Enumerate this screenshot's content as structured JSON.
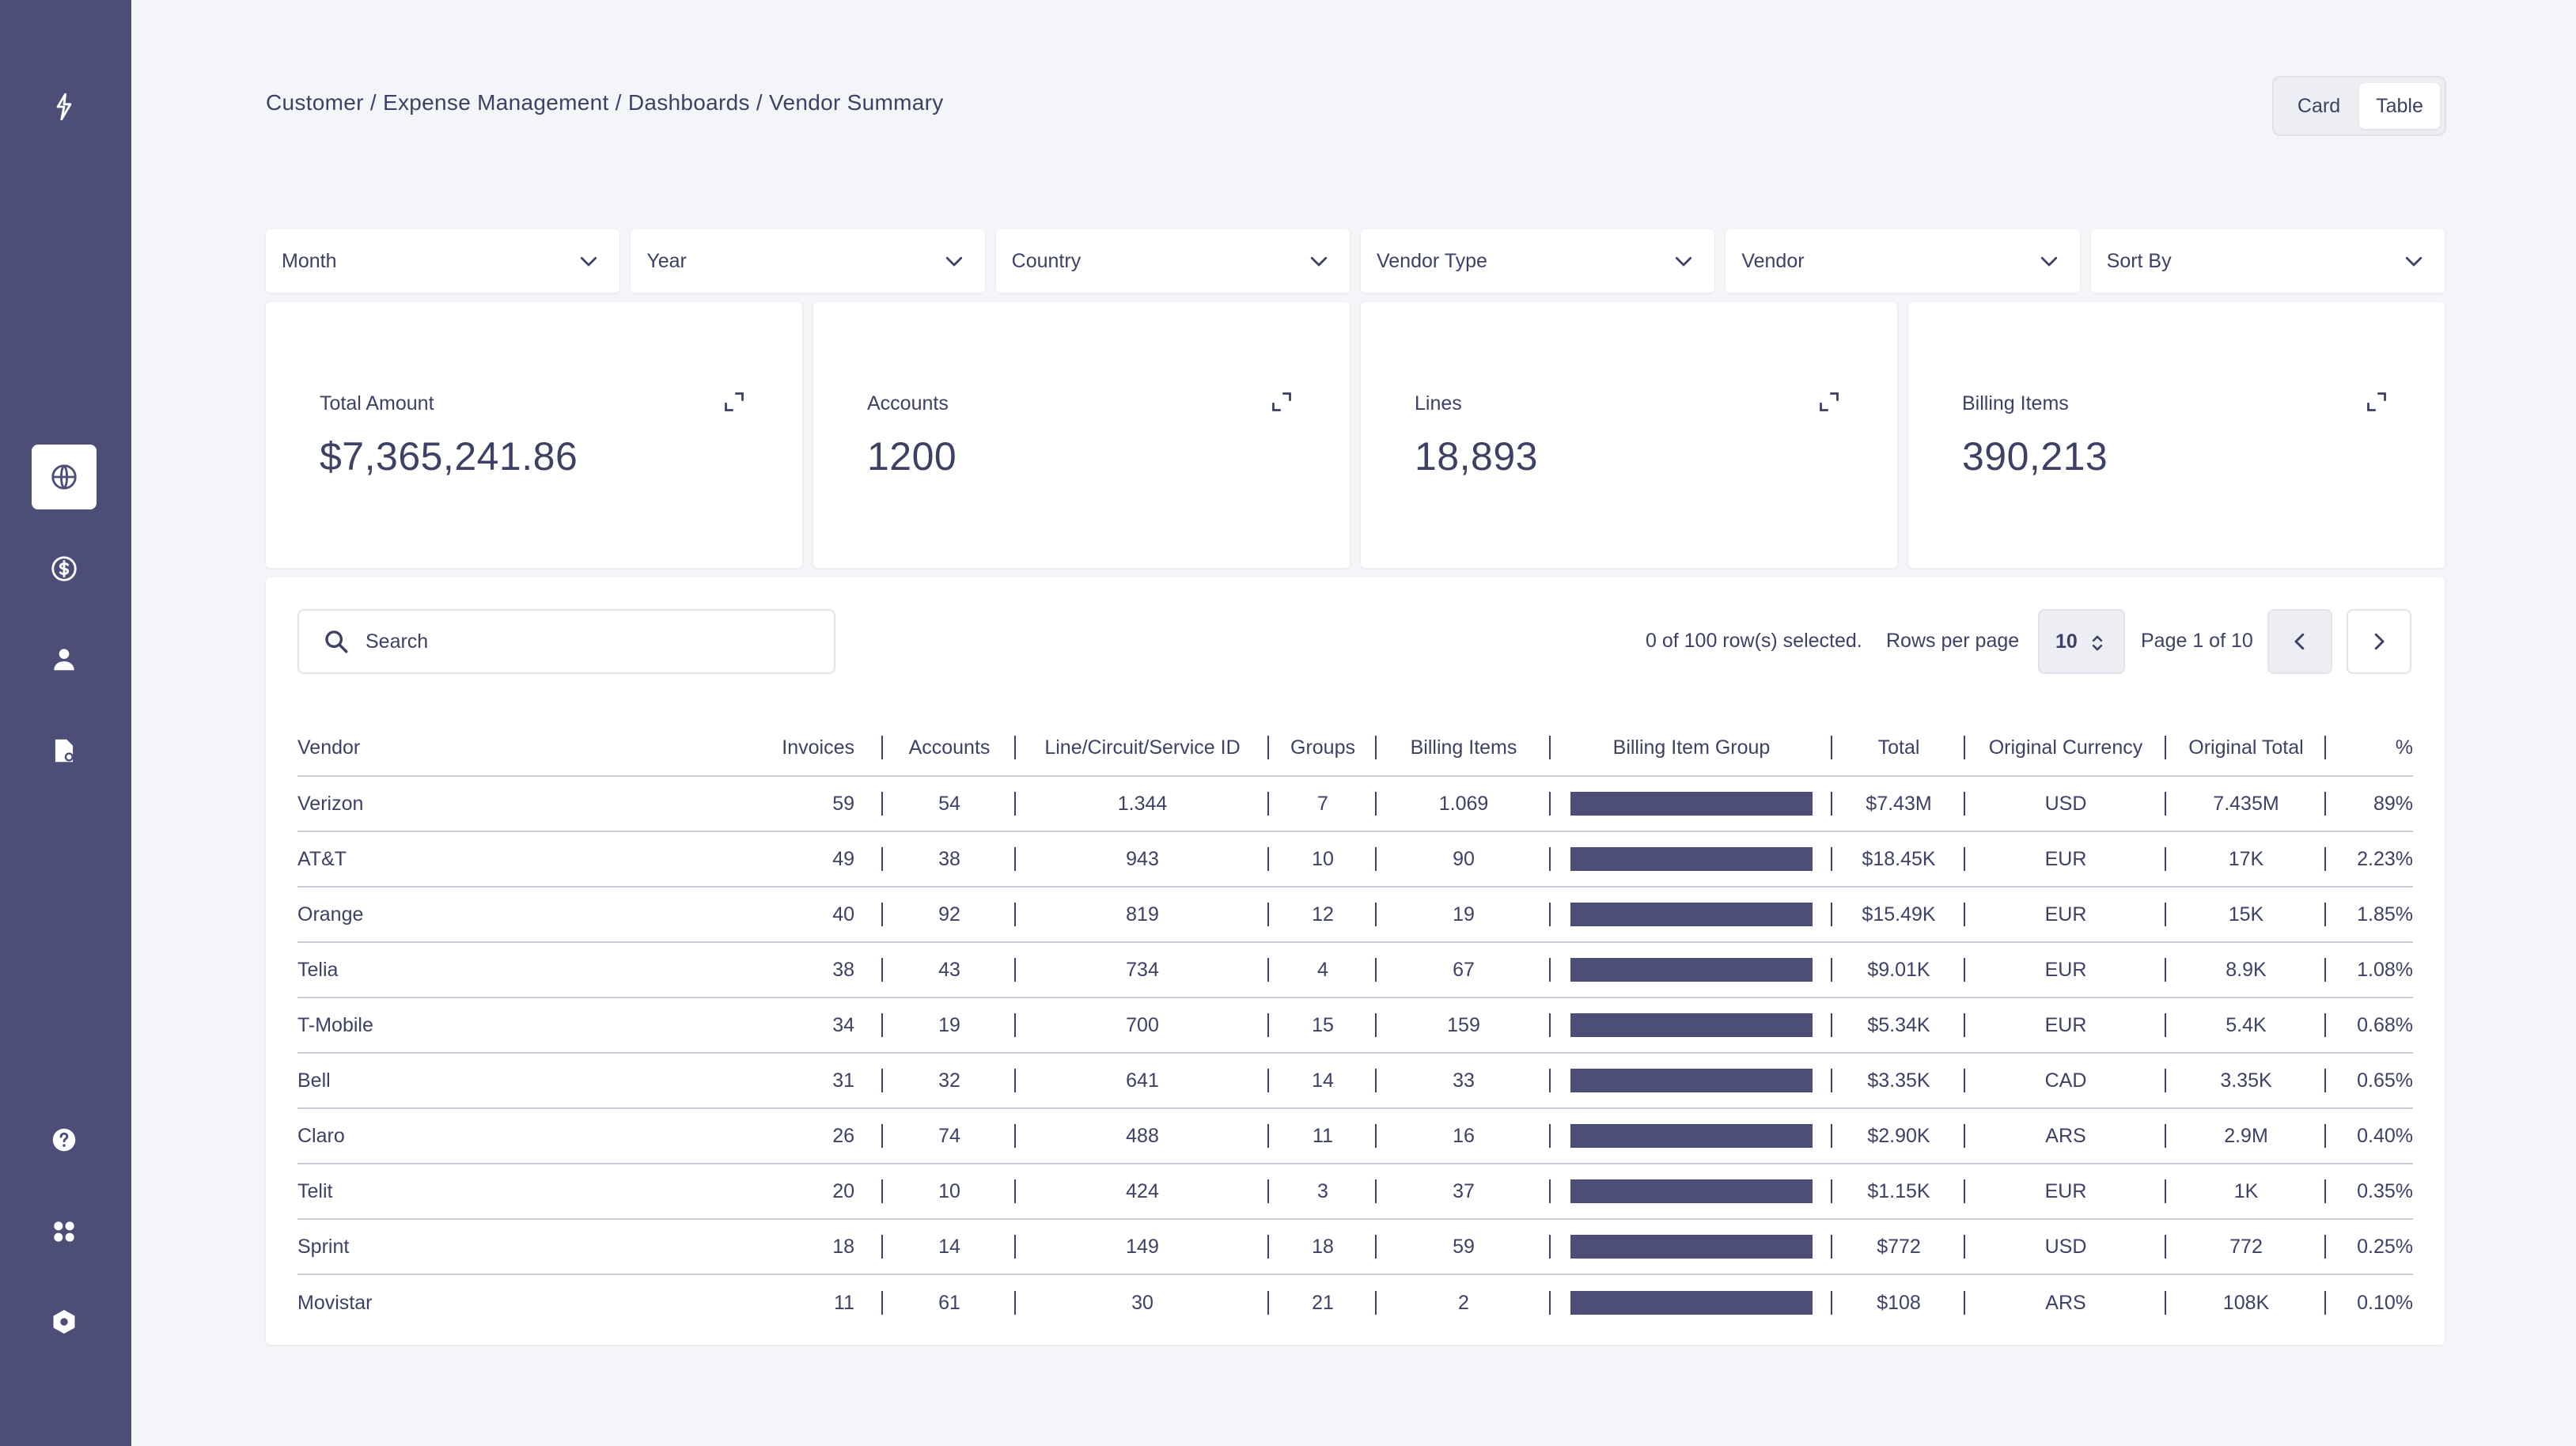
{
  "breadcrumb": "Customer / Expense Management / Dashboards / Vendor Summary",
  "view_toggle": {
    "card": "Card",
    "table": "Table",
    "selected": "Table"
  },
  "sidebar": {
    "items": [
      {
        "name": "logo",
        "icon": "bolt-icon"
      },
      {
        "name": "globe",
        "icon": "globe-icon",
        "active": true
      },
      {
        "name": "billing",
        "icon": "dollar-circle-icon"
      },
      {
        "name": "users",
        "icon": "user-icon"
      },
      {
        "name": "documents",
        "icon": "document-settings-icon"
      },
      {
        "name": "help",
        "icon": "question-circle-icon"
      },
      {
        "name": "apps",
        "icon": "grid-icon"
      },
      {
        "name": "settings",
        "icon": "hexagon-gear-icon"
      }
    ]
  },
  "filters": [
    "Month",
    "Year",
    "Country",
    "Vendor Type",
    "Vendor",
    "Sort By"
  ],
  "stats": [
    {
      "label": "Total Amount",
      "value": "$7,365,241.86"
    },
    {
      "label": "Accounts",
      "value": "1200"
    },
    {
      "label": "Lines",
      "value": "18,893"
    },
    {
      "label": "Billing Items",
      "value": "390,213"
    }
  ],
  "table": {
    "search_placeholder": "Search",
    "selection_info": "0 of 100 row(s) selected.",
    "rows_per_page_label": "Rows per page",
    "rows_per_page": "10",
    "page_info": "Page 1 of 10",
    "headers": [
      "Vendor",
      "Invoices",
      "Accounts",
      "Line/Circuit/Service ID",
      "Groups",
      "Billing Items",
      "Billing Item Group",
      "Total",
      "Original Currency",
      "Original Total",
      "%"
    ],
    "rows": [
      [
        "Verizon",
        "59",
        "54",
        "1.344",
        "7",
        "1.069",
        "",
        "$7.43M",
        "USD",
        "7.435M",
        "89%"
      ],
      [
        "AT&T",
        "49",
        "38",
        "943",
        "10",
        "90",
        "",
        "$18.45K",
        "EUR",
        "17K",
        "2.23%"
      ],
      [
        "Orange",
        "40",
        "92",
        "819",
        "12",
        "19",
        "",
        "$15.49K",
        "EUR",
        "15K",
        "1.85%"
      ],
      [
        "Telia",
        "38",
        "43",
        "734",
        "4",
        "67",
        "",
        "$9.01K",
        "EUR",
        "8.9K",
        "1.08%"
      ],
      [
        "T-Mobile",
        "34",
        "19",
        "700",
        "15",
        "159",
        "",
        "$5.34K",
        "EUR",
        "5.4K",
        "0.68%"
      ],
      [
        "Bell",
        "31",
        "32",
        "641",
        "14",
        "33",
        "",
        "$3.35K",
        "CAD",
        "3.35K",
        "0.65%"
      ],
      [
        "Claro",
        "26",
        "74",
        "488",
        "11",
        "16",
        "",
        "$2.90K",
        "ARS",
        "2.9M",
        "0.40%"
      ],
      [
        "Telit",
        "20",
        "10",
        "424",
        "3",
        "37",
        "",
        "$1.15K",
        "EUR",
        "1K",
        "0.35%"
      ],
      [
        "Sprint",
        "18",
        "14",
        "149",
        "18",
        "59",
        "",
        "$772",
        "USD",
        "772",
        "0.25%"
      ],
      [
        "Movistar",
        "11",
        "61",
        "30",
        "21",
        "2",
        "",
        "$108",
        "ARS",
        "108K",
        "0.10%"
      ]
    ]
  },
  "colors": {
    "sidebar": "#4c4e78",
    "text": "#3d4163",
    "bar": "#4c4e78",
    "background": "#f4f5f8"
  }
}
